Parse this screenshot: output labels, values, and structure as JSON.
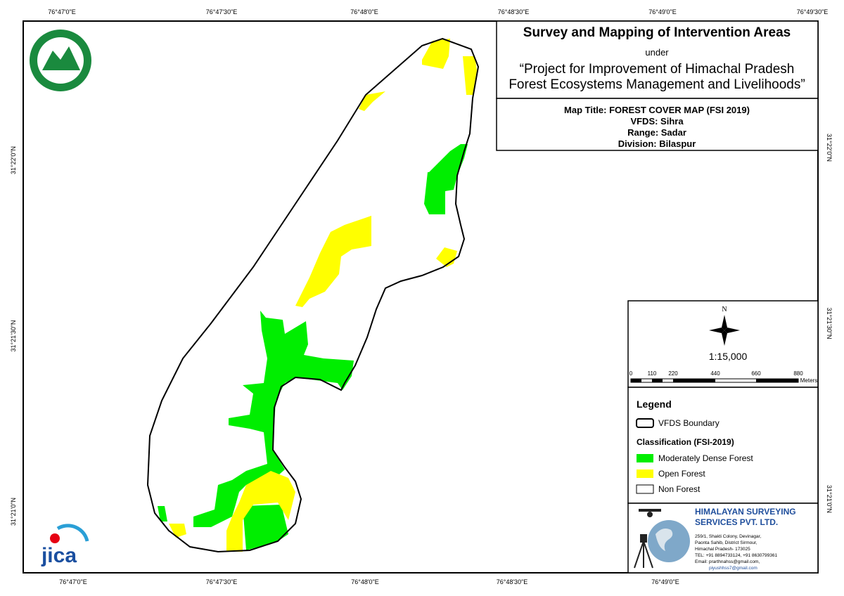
{
  "header": {
    "title": "Survey and Mapping of Intervention Areas",
    "subtitle": "under",
    "project_line1": "“Project for Improvement of Himachal Pradesh",
    "project_line2": "Forest Ecosystems Management and Livelihoods”"
  },
  "map_info": {
    "map_title": "Map Title: FOREST COVER MAP (FSI 2019)",
    "vfds": "VFDS: Sihra",
    "range": "Range: Sadar",
    "division": "Division: Bilaspur"
  },
  "graticule": {
    "top": [
      "76°47'0\"E",
      "76°47'30\"E",
      "76°48'0\"E",
      "76°48'30\"E",
      "76°49'0\"E",
      "76°49'30\"E"
    ],
    "bottom": [
      "76°47'0\"E",
      "76°47'30\"E",
      "76°48'0\"E",
      "76°48'30\"E",
      "76°49'0\"E"
    ],
    "left": [
      "31°22'0\"N",
      "31°21'30\"N",
      "31°21'0\"N"
    ],
    "right": [
      "31°22'0\"N",
      "31°21'30\"N",
      "31°21'0\"N"
    ]
  },
  "scale": {
    "north": "N",
    "ratio": "1:15,000",
    "bar_labels": [
      "0",
      "110",
      "220",
      "440",
      "660",
      "880"
    ],
    "unit": "Meters"
  },
  "legend": {
    "title": "Legend",
    "boundary": "VFDS Boundary",
    "classification_title": "Classification (FSI-2019)",
    "items": [
      "Moderately Dense Forest",
      "Open Forest",
      "Non Forest"
    ]
  },
  "company": {
    "name_line1": "HIMALAYAN SURVEYING",
    "name_line2": "SERVICES PVT. LTD.",
    "address": [
      "259/1, Shakti Colony, Devinagar,",
      "Paonta Sahib, District Sirmour,",
      "Himachal Pradesh- 173025",
      "TEL: +91 8894733124, +91 8630799361",
      "Email: prarthnahss@gmail.com,",
      "piyushhss7@gmail.com"
    ]
  },
  "logos": {
    "jica": "jica"
  }
}
